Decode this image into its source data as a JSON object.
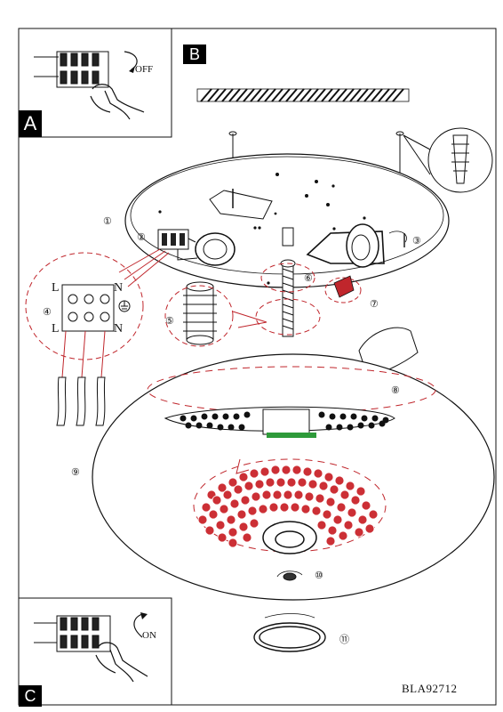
{
  "panels": {
    "a": {
      "badge": "A",
      "switch_label": "OFF"
    },
    "b": {
      "badge": "B"
    },
    "c": {
      "badge": "C",
      "switch_label": "ON"
    }
  },
  "terminal_labels": {
    "top_left": "L",
    "top_right": "N",
    "bottom_left": "L",
    "bottom_right": "N"
  },
  "steps": {
    "s1": "①",
    "s2": "②",
    "s3": "③",
    "s4": "④",
    "s5": "⑤",
    "s6": "⑥",
    "s7": "⑦",
    "s8": "⑧",
    "s9": "⑨",
    "s10": "⑩",
    "s11": "⑪"
  },
  "model_code": "BLA92712",
  "colors": {
    "line": "#111111",
    "highlight": "#c0262c",
    "crystal_fill": "#cc2f35",
    "mount_green": "#2e9a3a"
  }
}
